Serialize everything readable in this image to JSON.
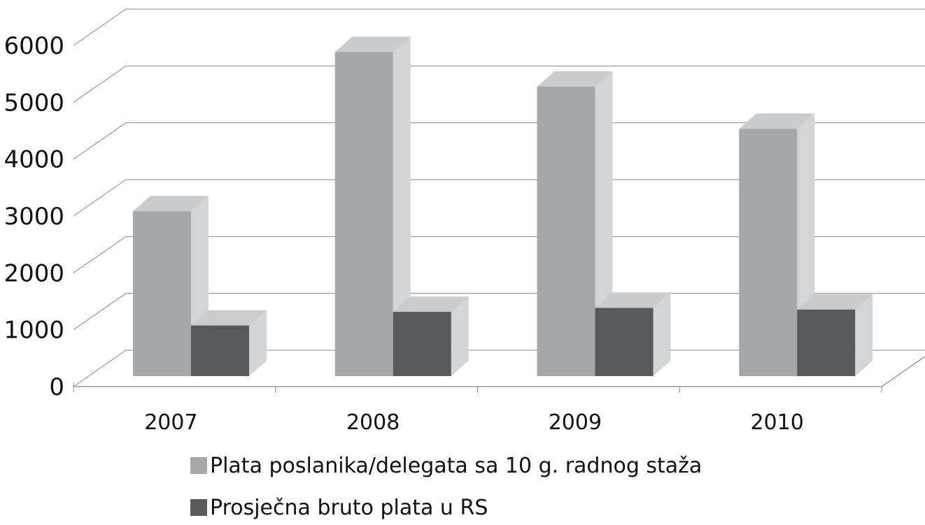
{
  "chart_data": {
    "type": "bar3d",
    "categories": [
      "2007",
      "2008",
      "2009",
      "2010"
    ],
    "series": [
      {
        "name": "Plata poslanika/delegata sa 10 g. radnog staža",
        "color": "#a6a7aa",
        "values": [
          2900,
          5700,
          5090,
          4350
        ]
      },
      {
        "name": "Prosječna bruto plata u RS",
        "color": "#58595b",
        "values": [
          890,
          1130,
          1200,
          1170
        ]
      }
    ],
    "ylim": [
      0,
      6000
    ],
    "yticks": [
      0,
      1000,
      2000,
      3000,
      4000,
      5000,
      6000
    ],
    "grid": true
  }
}
